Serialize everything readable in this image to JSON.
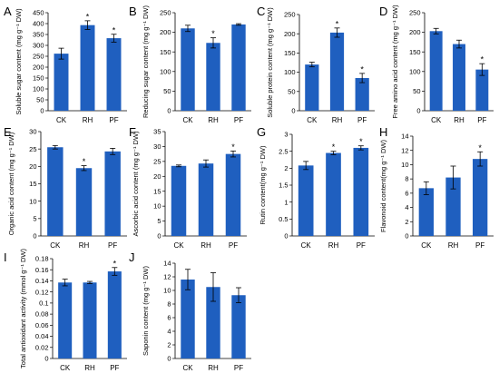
{
  "colors": {
    "bar": "#1f5fbf",
    "axis": "#000000",
    "error": "#000000"
  },
  "chart_data": [
    {
      "panel": "A",
      "type": "bar",
      "categories": [
        "CK",
        "RH",
        "PF"
      ],
      "values": [
        262,
        393,
        333
      ],
      "errors": [
        25,
        20,
        18
      ],
      "significance": [
        "",
        "*",
        "*"
      ],
      "ylabel": "Soluble sugar content (mg g⁻¹ DW)",
      "ylim": [
        0,
        450
      ],
      "yticks": [
        0,
        50,
        100,
        150,
        200,
        250,
        300,
        350,
        400,
        450
      ]
    },
    {
      "panel": "B",
      "type": "bar",
      "categories": [
        "CK",
        "RH",
        "PF"
      ],
      "values": [
        210,
        173,
        220
      ],
      "errors": [
        8,
        13,
        2
      ],
      "significance": [
        "",
        "*",
        ""
      ],
      "ylabel": "Reducing sugar content (mg g⁻¹ DW)",
      "ylim": [
        0,
        250
      ],
      "yticks": [
        0,
        50,
        100,
        150,
        200,
        250
      ]
    },
    {
      "panel": "C",
      "type": "bar",
      "categories": [
        "CK",
        "RH",
        "PF"
      ],
      "values": [
        120,
        203,
        85
      ],
      "errors": [
        6,
        12,
        12
      ],
      "significance": [
        "",
        "*",
        "*"
      ],
      "ylabel": "Soluble protein content (mg g⁻¹ DW)",
      "ylim": [
        0,
        250
      ],
      "yticks": [
        0,
        50,
        100,
        150,
        200,
        250
      ]
    },
    {
      "panel": "D",
      "type": "bar",
      "categories": [
        "CK",
        "RH",
        "PF"
      ],
      "values": [
        203,
        170,
        105
      ],
      "errors": [
        7,
        10,
        15
      ],
      "significance": [
        "",
        "",
        "*"
      ],
      "ylabel": "Free amino acid content (mg g⁻¹ DW)",
      "ylim": [
        0,
        250
      ],
      "yticks": [
        0,
        50,
        100,
        150,
        200,
        250
      ]
    },
    {
      "panel": "E",
      "type": "bar",
      "categories": [
        "CK",
        "RH",
        "PF"
      ],
      "values": [
        25.5,
        19.5,
        24.3
      ],
      "errors": [
        0.5,
        0.7,
        0.9
      ],
      "significance": [
        "",
        "*",
        ""
      ],
      "ylabel": "Organic acid content (mg g⁻¹ DW)",
      "ylim": [
        0,
        30
      ],
      "yticks": [
        0,
        5,
        10,
        15,
        20,
        25,
        30
      ]
    },
    {
      "panel": "F",
      "type": "bar",
      "categories": [
        "CK",
        "RH",
        "PF"
      ],
      "values": [
        23.5,
        24.3,
        27.5
      ],
      "errors": [
        0.3,
        1.2,
        1.0
      ],
      "significance": [
        "",
        "",
        "*"
      ],
      "ylabel": "Ascorbic acid content (mg g⁻¹ DW)",
      "ylim": [
        0,
        35
      ],
      "yticks": [
        0,
        5,
        10,
        15,
        20,
        25,
        30,
        35
      ]
    },
    {
      "panel": "G",
      "type": "bar",
      "categories": [
        "CK",
        "RH",
        "PF"
      ],
      "values": [
        2.08,
        2.45,
        2.6
      ],
      "errors": [
        0.12,
        0.05,
        0.06
      ],
      "significance": [
        "",
        "*",
        "*"
      ],
      "ylabel": "Rutin content(mg g⁻¹ DW)",
      "ylim": [
        0,
        3
      ],
      "yticks": [
        0,
        0.5,
        1,
        1.5,
        2,
        2.5,
        3
      ]
    },
    {
      "panel": "H",
      "type": "bar",
      "categories": [
        "CK",
        "RH",
        "PF"
      ],
      "values": [
        6.7,
        8.2,
        10.8
      ],
      "errors": [
        0.9,
        1.6,
        1.0
      ],
      "significance": [
        "",
        "",
        "*"
      ],
      "ylabel": "Flavonoid content(mg g⁻¹ DW)",
      "ylim": [
        0,
        14
      ],
      "yticks": [
        0,
        2,
        4,
        6,
        8,
        10,
        12,
        14
      ]
    },
    {
      "panel": "I",
      "type": "bar",
      "categories": [
        "CK",
        "RH",
        "PF"
      ],
      "values": [
        0.137,
        0.137,
        0.157
      ],
      "errors": [
        0.006,
        0.002,
        0.007
      ],
      "significance": [
        "",
        "",
        "*"
      ],
      "ylabel": "Total antioxidant activity (mmol g⁻¹ DW)",
      "ylim": [
        0,
        0.18
      ],
      "yticks": [
        0,
        0.02,
        0.04,
        0.06,
        0.08,
        0.1,
        0.12,
        0.14,
        0.16,
        0.18
      ]
    },
    {
      "panel": "J",
      "type": "bar",
      "categories": [
        "CK",
        "RH",
        "PF"
      ],
      "values": [
        11.6,
        10.5,
        9.3
      ],
      "errors": [
        1.5,
        2.1,
        1.1
      ],
      "significance": [
        "",
        "",
        ""
      ],
      "ylabel": "Saponin content (mg g⁻¹ DW)",
      "ylim": [
        0,
        14
      ],
      "yticks": [
        0,
        2,
        4,
        6,
        8,
        10,
        12,
        14
      ]
    }
  ]
}
